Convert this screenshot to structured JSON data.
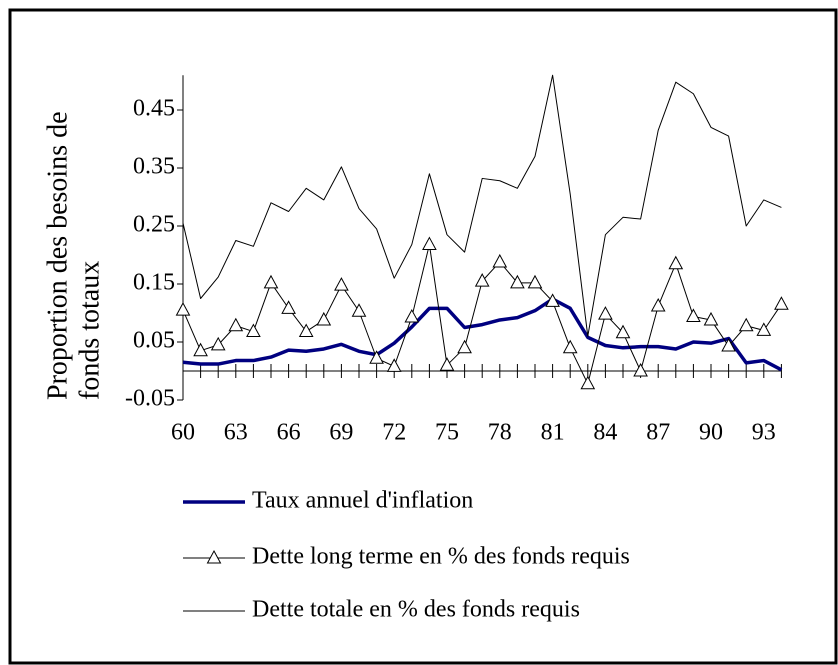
{
  "chart_data": {
    "type": "line",
    "y_label": [
      "Proportion  des besoins de",
      "fonds totaux"
    ],
    "x": [
      60,
      61,
      62,
      63,
      64,
      65,
      66,
      67,
      68,
      69,
      70,
      71,
      72,
      73,
      74,
      75,
      76,
      77,
      78,
      79,
      80,
      81,
      82,
      83,
      84,
      85,
      86,
      87,
      88,
      89,
      90,
      91,
      92,
      93,
      94
    ],
    "xlim": [
      60,
      94
    ],
    "xticks": [
      60,
      63,
      66,
      69,
      72,
      75,
      78,
      81,
      84,
      87,
      90,
      93
    ],
    "ylim": [
      -0.05,
      0.51
    ],
    "yticks": [
      -0.05,
      0.05,
      0.15,
      0.25,
      0.35,
      0.45
    ],
    "series": [
      {
        "name": "Taux annuel d'inflation",
        "color": "#000080",
        "line_width": 3.5,
        "marker": "none",
        "values": [
          0.015,
          0.012,
          0.012,
          0.018,
          0.018,
          0.024,
          0.036,
          0.034,
          0.038,
          0.046,
          0.034,
          0.028,
          0.048,
          0.076,
          0.108,
          0.108,
          0.075,
          0.08,
          0.088,
          0.092,
          0.104,
          0.124,
          0.108,
          0.058,
          0.044,
          0.04,
          0.042,
          0.042,
          0.038,
          0.05,
          0.048,
          0.056,
          0.014,
          0.018,
          0.002
        ]
      },
      {
        "name": "Dette long terme en % des fonds requis",
        "color": "#000000",
        "line_width": 1,
        "marker": "triangle",
        "values": [
          0.105,
          0.035,
          0.045,
          0.078,
          0.068,
          0.152,
          0.108,
          0.068,
          0.088,
          0.148,
          0.103,
          0.022,
          0.008,
          0.093,
          0.218,
          0.01,
          0.04,
          0.155,
          0.188,
          0.152,
          0.152,
          0.12,
          0.04,
          -0.022,
          0.098,
          0.066,
          0.0,
          0.112,
          0.185,
          0.094,
          0.088,
          0.043,
          0.078,
          0.07,
          0.115
        ]
      },
      {
        "name": "Dette totale en % des fonds requis",
        "color": "#000000",
        "line_width": 1,
        "marker": "none",
        "values": [
          0.255,
          0.125,
          0.162,
          0.225,
          0.215,
          0.29,
          0.275,
          0.315,
          0.295,
          0.352,
          0.28,
          0.245,
          0.16,
          0.218,
          0.34,
          0.235,
          0.205,
          0.332,
          0.328,
          0.315,
          0.37,
          0.51,
          0.305,
          0.06,
          0.235,
          0.265,
          0.262,
          0.415,
          0.498,
          0.478,
          0.42,
          0.405,
          0.25,
          0.295,
          0.282
        ]
      }
    ]
  }
}
